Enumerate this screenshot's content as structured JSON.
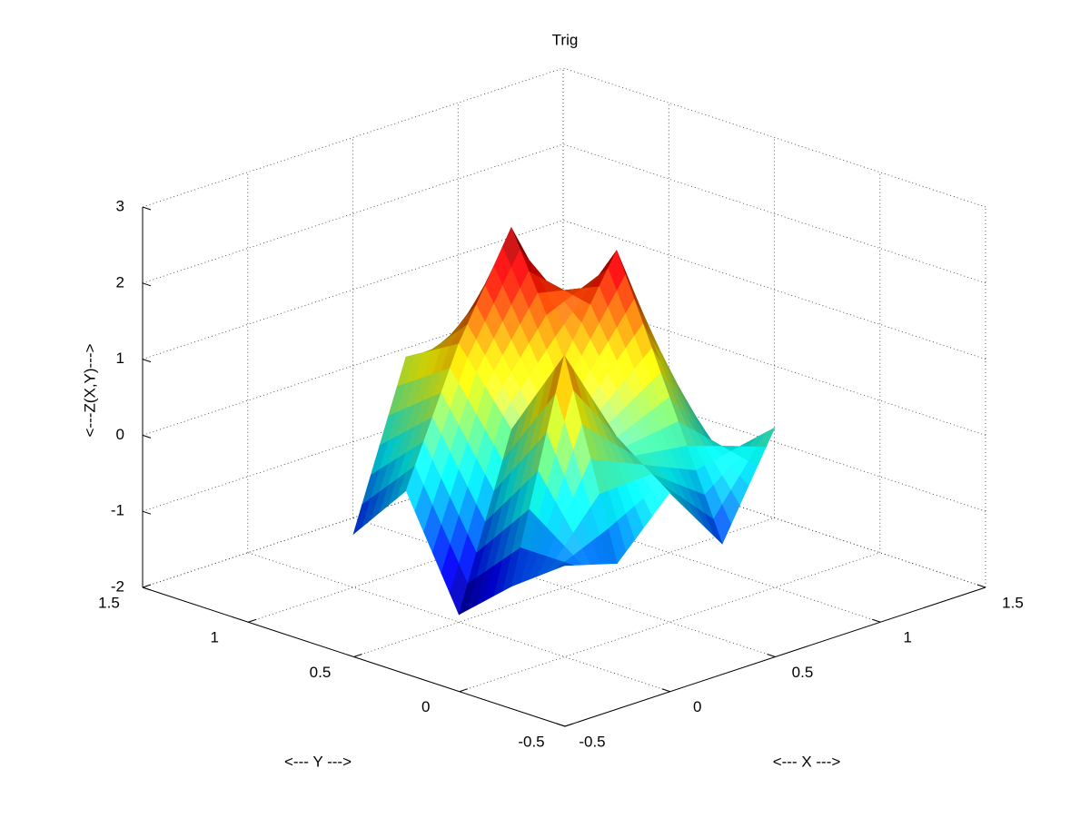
{
  "chart_data": {
    "type": "surface",
    "title": "Trig",
    "xlabel": "<--- X --->",
    "ylabel": "<--- Y --->",
    "zlabel": "<---Z(X,Y)--->",
    "x": [
      0,
      0.25,
      0.5,
      0.75,
      1
    ],
    "y": [
      0,
      0.25,
      0.5,
      0.75,
      1
    ],
    "z": [
      [
        -0.8,
        -1.0,
        -0.3,
        -1.2,
        0.1
      ],
      [
        -1.3,
        1.5,
        0.2,
        0.5,
        -0.5
      ],
      [
        -1.9,
        0.3,
        1.0,
        2.2,
        0.3
      ],
      [
        -0.5,
        1.2,
        2.5,
        1.0,
        -0.3
      ],
      [
        -1.3,
        0.8,
        0.2,
        1.0,
        -0.6
      ]
    ],
    "colormap": "jet",
    "xlim": [
      -0.5,
      1.5
    ],
    "xticks": [
      -0.5,
      0,
      0.5,
      1,
      1.5
    ],
    "ylim": [
      -0.5,
      1.5
    ],
    "yticks": [
      -0.5,
      0,
      0.5,
      1,
      1.5
    ],
    "zlim": [
      -2,
      3
    ],
    "zticks": [
      -2,
      -1,
      0,
      1,
      2,
      3
    ],
    "grid": true
  }
}
